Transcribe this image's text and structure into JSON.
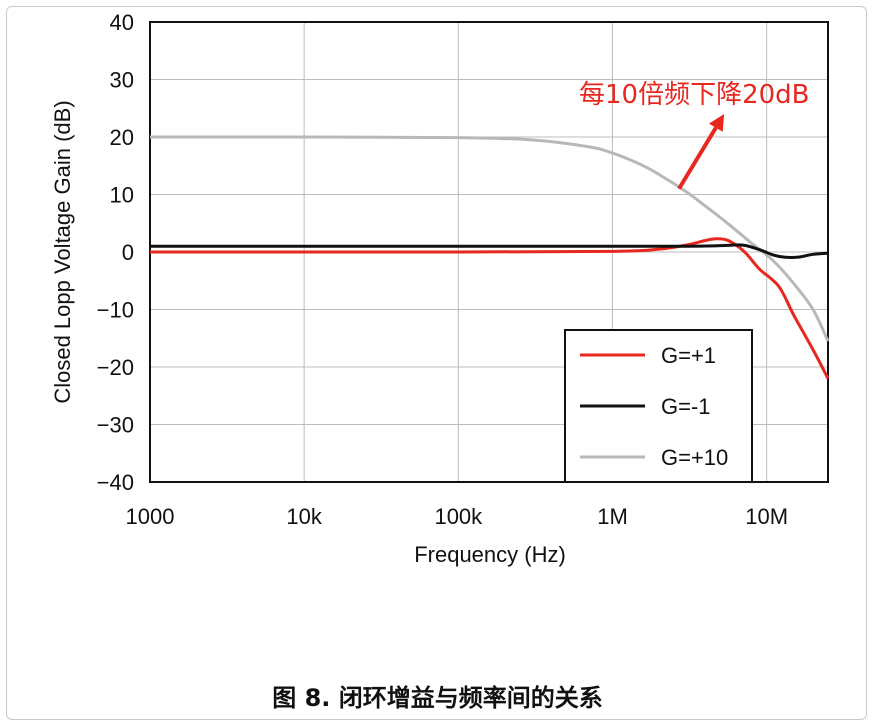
{
  "caption": "图 8. 闭环增益与频率间的关系",
  "chart_data": {
    "type": "line",
    "title": "",
    "xlabel": "Frequency (Hz)",
    "ylabel": "Closed Lopp Voltage Gain (dB)",
    "xscale": "log",
    "xlim": [
      1000,
      25000000
    ],
    "ylim": [
      -40,
      40
    ],
    "xticks": [
      1000,
      10000,
      100000,
      1000000,
      10000000
    ],
    "xtick_labels": [
      "1000",
      "10k",
      "100k",
      "1M",
      "10M"
    ],
    "yticks": [
      40,
      30,
      20,
      10,
      0,
      -10,
      -20,
      -30,
      -40
    ],
    "ytick_labels": [
      "40",
      "30",
      "20",
      "10",
      "0",
      "−10",
      "−20",
      "−30",
      "−40"
    ],
    "grid": true,
    "legend_position": "bottom-right",
    "annotation": {
      "text": "每10倍频下降20dB",
      "color": "#e8271f",
      "arrow_from": [
        2700000,
        11
      ],
      "arrow_to": [
        5300000,
        24
      ]
    },
    "series": [
      {
        "name": "G=+1",
        "color": "#e8271f",
        "x": [
          1000,
          100000,
          1000000,
          2000000,
          3000000,
          4000000,
          4700000,
          5500000,
          6500000,
          7500000,
          9000000,
          12000000,
          15000000,
          20000000,
          25000000
        ],
        "y": [
          0,
          0,
          0.1,
          0.5,
          1.2,
          2.0,
          2.3,
          2.1,
          1.0,
          -0.5,
          -3.0,
          -6.0,
          -11.0,
          -17.0,
          -22.0
        ]
      },
      {
        "name": "G=-1",
        "color": "#111111",
        "x": [
          1000,
          100000,
          1000000,
          3000000,
          5000000,
          7000000,
          9000000,
          11000000,
          13000000,
          16000000,
          20000000,
          25000000
        ],
        "y": [
          1,
          1,
          1,
          1,
          1.1,
          1.2,
          0.4,
          -0.5,
          -0.9,
          -0.9,
          -0.4,
          -0.2
        ]
      },
      {
        "name": "G=+10",
        "color": "#b8b8b8",
        "x": [
          1000,
          10000,
          100000,
          300000,
          700000,
          1000000,
          1500000,
          2000000,
          3000000,
          4000000,
          5000000,
          6000000,
          7000000,
          8000000,
          10000000,
          12000000,
          15000000,
          20000000,
          25000000
        ],
        "y": [
          20,
          20,
          19.9,
          19.5,
          18.3,
          17.2,
          15.3,
          13.5,
          10.5,
          8.0,
          6.0,
          4.3,
          2.8,
          1.5,
          -0.5,
          -2.5,
          -5.5,
          -10.0,
          -15.5
        ]
      }
    ]
  }
}
